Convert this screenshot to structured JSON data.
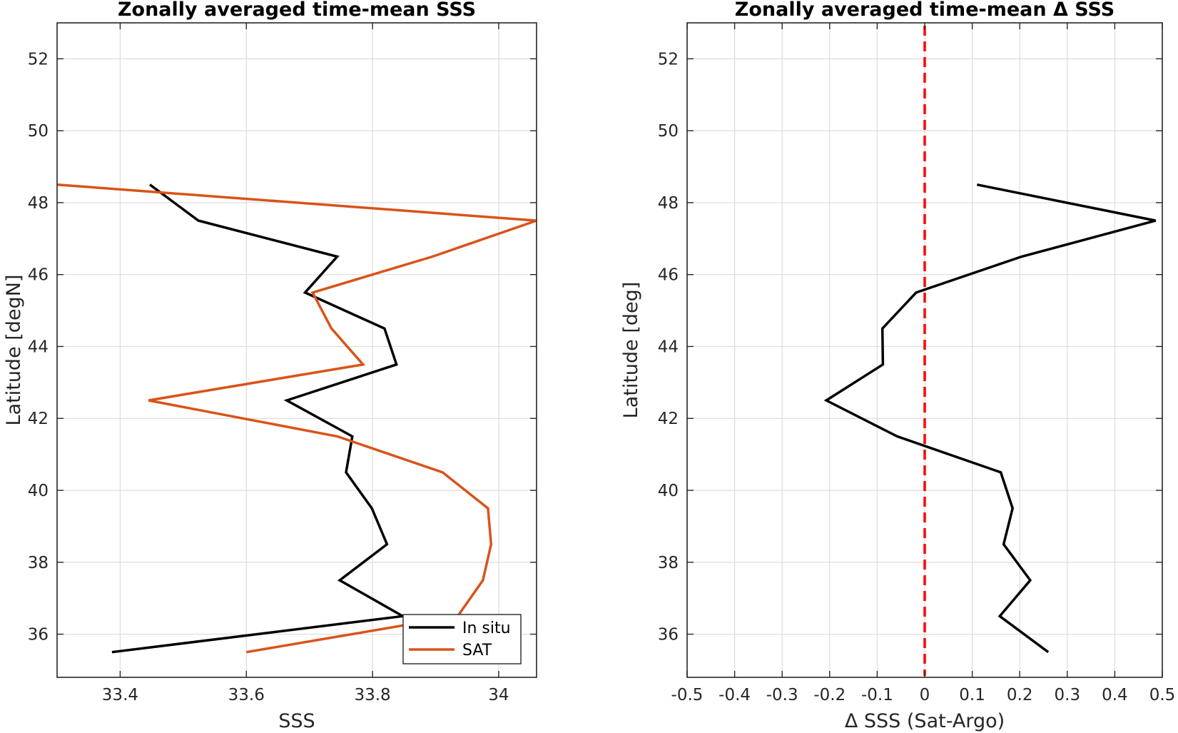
{
  "chart_data": [
    {
      "type": "line",
      "title": "Zonally averaged time-mean SSS",
      "xlabel": "SSS",
      "ylabel": "Latitude [degN]",
      "xlim": [
        33.3,
        34.06
      ],
      "ylim": [
        34.8,
        53
      ],
      "xticks": [
        33.4,
        33.6,
        33.8,
        34
      ],
      "xtick_labels": [
        "33.4",
        "33.6",
        "33.8",
        "34"
      ],
      "yticks": [
        36,
        38,
        40,
        42,
        44,
        46,
        48,
        50,
        52
      ],
      "ytick_labels": [
        "36",
        "38",
        "40",
        "42",
        "44",
        "46",
        "48",
        "50",
        "52"
      ],
      "grid": true,
      "legend_position": "bottom-right",
      "series": [
        {
          "name": "In situ",
          "color": "#000000",
          "x": [
            33.387,
            33.848,
            33.748,
            33.823,
            33.799,
            33.758,
            33.768,
            33.664,
            33.838,
            33.819,
            33.693,
            33.744,
            33.524,
            33.447
          ],
          "y": [
            35.5,
            36.5,
            37.5,
            38.5,
            39.5,
            40.5,
            41.5,
            42.5,
            43.5,
            44.5,
            45.5,
            46.5,
            47.5,
            48.5
          ]
        },
        {
          "name": "SAT",
          "color": "#d95319",
          "x": [
            33.6,
            33.935,
            33.975,
            33.988,
            33.983,
            33.911,
            33.744,
            33.445,
            33.785,
            33.735,
            33.705,
            33.895,
            34.06,
            33.3
          ],
          "y": [
            35.5,
            36.5,
            37.5,
            38.5,
            39.5,
            40.5,
            41.5,
            42.5,
            43.5,
            44.5,
            45.5,
            46.5,
            47.5,
            48.5
          ]
        }
      ]
    },
    {
      "type": "line",
      "title": "Zonally averaged time-mean Δ SSS",
      "xlabel": "Δ SSS (Sat-Argo)",
      "ylabel": "Latitude [deg]",
      "xlim": [
        -0.5,
        0.5
      ],
      "ylim": [
        34.8,
        53
      ],
      "xticks": [
        -0.5,
        -0.4,
        -0.3,
        -0.2,
        -0.1,
        0,
        0.1,
        0.2,
        0.3,
        0.4,
        0.5
      ],
      "xtick_labels": [
        "-0.5",
        "-0.4",
        "-0.3",
        "-0.2",
        "-0.1",
        "0",
        "0.1",
        "0.2",
        "0.3",
        "0.4",
        "0.5"
      ],
      "yticks": [
        36,
        38,
        40,
        42,
        44,
        46,
        48,
        50,
        52
      ],
      "ytick_labels": [
        "36",
        "38",
        "40",
        "42",
        "44",
        "46",
        "48",
        "50",
        "52"
      ],
      "grid": true,
      "reference_line": {
        "x": 0,
        "color": "#ff0000",
        "style": "dashed"
      },
      "series": [
        {
          "color": "#000000",
          "x": [
            0.26,
            0.158,
            0.222,
            0.166,
            0.185,
            0.16,
            -0.058,
            -0.207,
            -0.088,
            -0.089,
            -0.018,
            0.204,
            0.486,
            0.11
          ],
          "y": [
            35.5,
            36.5,
            37.5,
            38.5,
            39.5,
            40.5,
            41.5,
            42.5,
            43.5,
            44.5,
            45.5,
            46.5,
            47.5,
            48.5
          ]
        }
      ]
    }
  ]
}
